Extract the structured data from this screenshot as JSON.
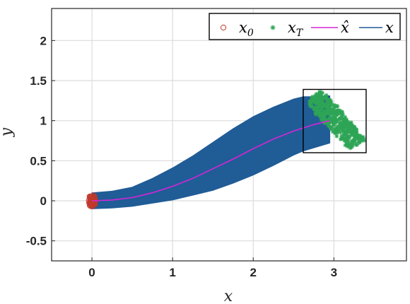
{
  "chart_data": {
    "type": "line",
    "xlabel": "x",
    "ylabel": "y",
    "xlim": [
      -0.5,
      3.9
    ],
    "ylim": [
      -0.75,
      2.4
    ],
    "xticks": [
      0,
      1,
      2,
      3
    ],
    "xtick_labels": [
      "0",
      "1",
      "2",
      "3"
    ],
    "yticks": [
      -0.5,
      0,
      0.5,
      1,
      1.5,
      2
    ],
    "ytick_labels": [
      "-0.5",
      "0",
      "0.5",
      "1",
      "1.5",
      "2"
    ],
    "grid": true,
    "legend_position": "top-right",
    "mean_trajectory": {
      "x": [
        0,
        0.25,
        0.5,
        0.75,
        1.0,
        1.25,
        1.5,
        1.75,
        2.0,
        2.25,
        2.5,
        2.75,
        2.95
      ],
      "y": [
        0,
        0.01,
        0.04,
        0.1,
        0.18,
        0.28,
        0.4,
        0.52,
        0.65,
        0.77,
        0.87,
        0.95,
        1.0
      ]
    },
    "envelope": {
      "x": [
        0,
        0.25,
        0.5,
        0.75,
        1.0,
        1.25,
        1.5,
        1.75,
        2.0,
        2.25,
        2.5,
        2.62,
        2.75,
        2.95
      ],
      "upper": [
        0.1,
        0.12,
        0.17,
        0.28,
        0.41,
        0.56,
        0.73,
        0.9,
        1.05,
        1.17,
        1.27,
        1.3,
        1.3,
        1.31
      ],
      "lower": [
        -0.1,
        -0.09,
        -0.07,
        -0.03,
        0.01,
        0.07,
        0.13,
        0.22,
        0.32,
        0.44,
        0.57,
        0.62,
        0.66,
        0.72
      ]
    },
    "initial_state_cluster": {
      "center": [
        0,
        0
      ],
      "spread": [
        0.05,
        0.08
      ]
    },
    "final_state_box": {
      "x": [
        2.62,
        3.4
      ],
      "y": [
        0.6,
        1.39
      ]
    },
    "series": [
      {
        "name": "x_0",
        "marker": "circle",
        "color": "#c0392b"
      },
      {
        "name": "x_T",
        "marker": "asterisk",
        "color": "#2ea556"
      },
      {
        "name": "x̂",
        "marker": "line",
        "color": "#d526d8"
      },
      {
        "name": "x",
        "marker": "line",
        "color": "#1f5a94"
      }
    ]
  },
  "legend": {
    "x0_label": "x",
    "x0_sub": "0",
    "xT_label": "x",
    "xT_sub": "T",
    "xhat_label": "x̂",
    "x_label": "x"
  },
  "colors": {
    "envelope": "#205c96",
    "mean": "#d526d8",
    "start": "#c0392b",
    "end": "#2ea556"
  }
}
